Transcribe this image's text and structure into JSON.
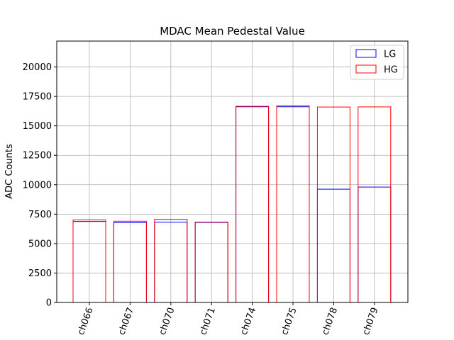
{
  "chart_data": {
    "type": "bar",
    "title": "MDAC Mean Pedestal Value",
    "xlabel": "",
    "ylabel": "ADC Counts",
    "categories": [
      "ch066",
      "ch067",
      "ch070",
      "ch071",
      "ch074",
      "ch075",
      "ch078",
      "ch079"
    ],
    "series": [
      {
        "name": "LG",
        "color": "#0000ff",
        "values": [
          6880,
          6770,
          6820,
          6800,
          16620,
          16620,
          9620,
          9800
        ]
      },
      {
        "name": "HG",
        "color": "#ff0000",
        "values": [
          7010,
          6900,
          7060,
          6830,
          16660,
          16700,
          16600,
          16610
        ]
      }
    ],
    "ylim": [
      0,
      22200
    ],
    "yticks": [
      0,
      2500,
      5000,
      7500,
      10000,
      12500,
      15000,
      17500,
      20000
    ],
    "grid": true,
    "legend_position": "top-right"
  }
}
